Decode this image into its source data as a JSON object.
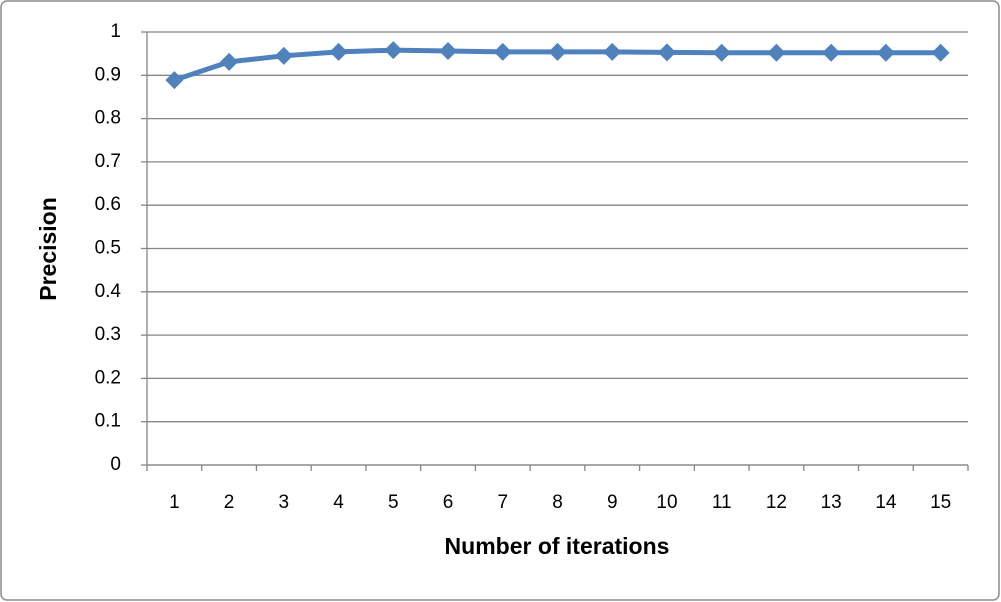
{
  "chart_data": {
    "type": "line",
    "x_label": "Number of iterations",
    "y_label": "Precision",
    "categories": [
      "1",
      "2",
      "3",
      "4",
      "5",
      "6",
      "7",
      "8",
      "9",
      "10",
      "11",
      "12",
      "13",
      "14",
      "15"
    ],
    "values": [
      0.889,
      0.931,
      0.945,
      0.954,
      0.958,
      0.956,
      0.954,
      0.954,
      0.954,
      0.953,
      0.952,
      0.952,
      0.952,
      0.952,
      0.952
    ],
    "color": "#4f81bd",
    "ylim": [
      0,
      1
    ],
    "yticks": [
      0,
      0.1,
      0.2,
      0.3,
      0.4,
      0.5,
      0.6,
      0.7,
      0.8,
      0.9,
      1
    ],
    "grid": true
  }
}
